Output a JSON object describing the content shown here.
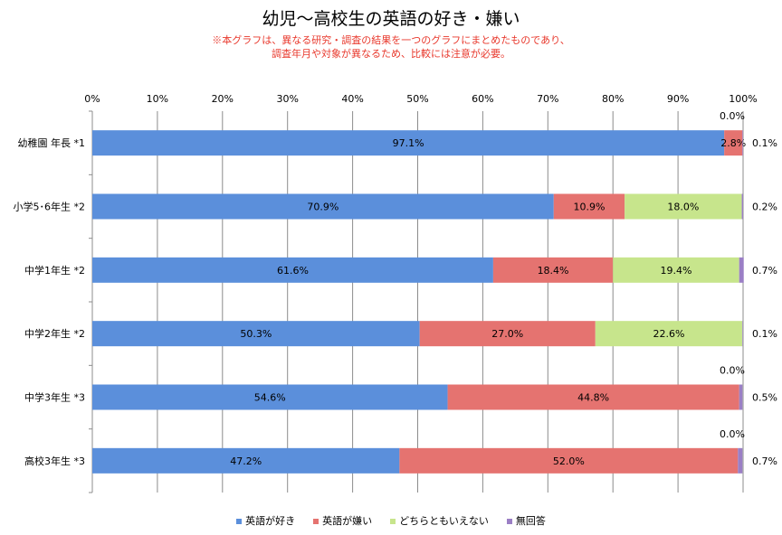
{
  "title": "幼児〜高校生の英語の好き・嫌い",
  "notes": [
    "※本グラフは、異なる研究・調査の結果を一つのグラフにまとめたものであり、",
    "調査年月や対象が異なるため、比較には注意が必要。"
  ],
  "chart_data": {
    "type": "bar",
    "orientation": "horizontal",
    "stacked": "percent",
    "xlim": [
      0,
      100
    ],
    "xticks": [
      "0%",
      "10%",
      "20%",
      "30%",
      "40%",
      "50%",
      "60%",
      "70%",
      "80%",
      "90%",
      "100%"
    ],
    "grid": true,
    "legend_position": "bottom",
    "categories": [
      "幼稚園 年長 *1",
      "小学5･6年生 *2",
      "中学1年生 *2",
      "中学2年生 *2",
      "中学3年生 *3",
      "高校3年生 *3"
    ],
    "series": [
      {
        "name": "英語が好き",
        "color": "#5b8fdb",
        "values": [
          97.1,
          70.9,
          61.6,
          50.3,
          54.6,
          47.2
        ],
        "labels": [
          "97.1%",
          "70.9%",
          "61.6%",
          "50.3%",
          "54.6%",
          "47.2%"
        ]
      },
      {
        "name": "英語が嫌い",
        "color": "#e57370",
        "values": [
          2.8,
          10.9,
          18.4,
          27.0,
          44.8,
          52.0
        ],
        "labels": [
          "2.8%",
          "10.9%",
          "18.4%",
          "27.0%",
          "44.8%",
          "52.0%"
        ]
      },
      {
        "name": "どちらともいえない",
        "color": "#c7e58c",
        "values": [
          0.0,
          18.0,
          19.4,
          22.6,
          0.0,
          0.0
        ],
        "labels": [
          "0.0%",
          "18.0%",
          "19.4%",
          "22.6%",
          "0.0%",
          "0.0%"
        ]
      },
      {
        "name": "無回答",
        "color": "#9b7fc5",
        "values": [
          0.1,
          0.2,
          0.7,
          0.1,
          0.5,
          0.7
        ],
        "labels": [
          "0.1%",
          "0.2%",
          "0.7%",
          "0.1%",
          "0.5%",
          "0.7%"
        ]
      }
    ]
  }
}
